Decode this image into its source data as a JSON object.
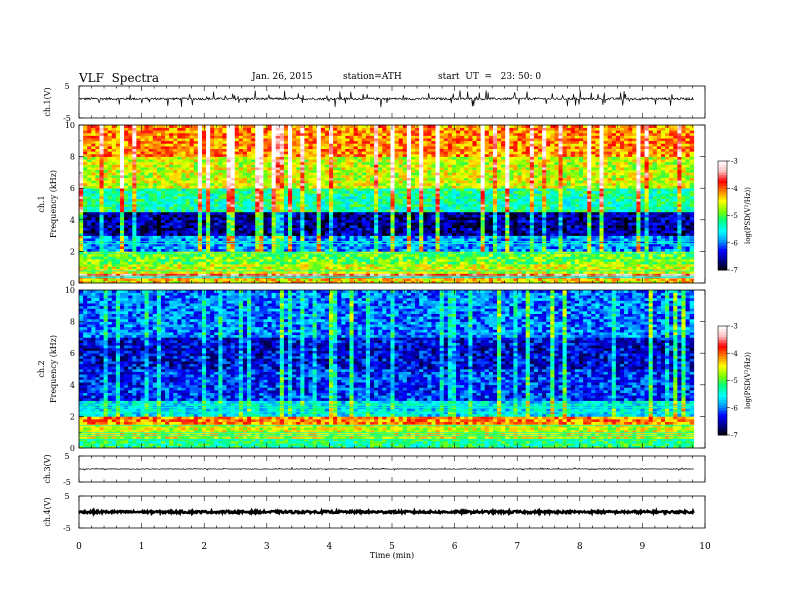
{
  "header": {
    "title": "VLF  Spectra",
    "date": "Jan. 26, 2015",
    "station": "station=ATH",
    "start": "start  UT  =   23: 50: 0"
  },
  "chart_data": [
    {
      "type": "line",
      "panel": "ch1-waveform",
      "ylabel": "ch.1(V)",
      "ylim": [
        -5,
        5
      ],
      "yticks": [
        "5",
        "-5"
      ],
      "x_range_min": [
        0,
        9.82
      ],
      "baseline_v": 1.0,
      "noise_v": 0.35,
      "spike_v": 1.6
    },
    {
      "type": "heatmap",
      "panel": "ch1-spectrogram",
      "ylabel": [
        "ch.1",
        "Frequency  (kHz)"
      ],
      "ylim": [
        0,
        10
      ],
      "yticks": [
        "0",
        "2",
        "4",
        "6",
        "8",
        "10"
      ],
      "x_range_min": [
        0,
        9.82
      ],
      "colorbar": {
        "label": "log(PSD(V²/Hz))",
        "range": [
          -7,
          -3
        ],
        "ticks": [
          "-3",
          "-4",
          "-5",
          "-6",
          "-7"
        ]
      },
      "bands": [
        {
          "f": [
            0,
            0.3
          ],
          "log_psd": -4.4
        },
        {
          "f": [
            0.3,
            0.6
          ],
          "log_psd": -3.6
        },
        {
          "f": [
            0.6,
            1.2
          ],
          "log_psd": -4.6
        },
        {
          "f": [
            1.2,
            2.0
          ],
          "log_psd": -4.9
        },
        {
          "f": [
            2.0,
            3.0
          ],
          "log_psd": -5.9
        },
        {
          "f": [
            3.0,
            4.5
          ],
          "log_psd": -6.6
        },
        {
          "f": [
            4.5,
            6.0
          ],
          "log_psd": -5.3
        },
        {
          "f": [
            6.0,
            8.0
          ],
          "log_psd": -4.6
        },
        {
          "f": [
            8.0,
            10.0
          ],
          "log_psd": -4.1
        }
      ]
    },
    {
      "type": "heatmap",
      "panel": "ch2-spectrogram",
      "ylabel": [
        "ch.2",
        "Frequency  (kHz)"
      ],
      "ylim": [
        0,
        10
      ],
      "yticks": [
        "0",
        "2",
        "4",
        "6",
        "8",
        "10"
      ],
      "x_range_min": [
        0,
        9.82
      ],
      "colorbar": {
        "label": "log(PSD(V²/Hz))",
        "range": [
          -7,
          -3
        ],
        "ticks": [
          "-3",
          "-4",
          "-5",
          "-6",
          "-7"
        ]
      },
      "bands": [
        {
          "f": [
            0,
            0.6
          ],
          "log_psd": -5.2
        },
        {
          "f": [
            0.6,
            1.5
          ],
          "log_psd": -4.6
        },
        {
          "f": [
            1.5,
            2.0
          ],
          "log_psd": -4.1
        },
        {
          "f": [
            2.0,
            3.0
          ],
          "log_psd": -5.6
        },
        {
          "f": [
            3.0,
            5.0
          ],
          "log_psd": -6.2
        },
        {
          "f": [
            5.0,
            7.0
          ],
          "log_psd": -6.4
        },
        {
          "f": [
            7.0,
            10.0
          ],
          "log_psd": -6.0
        }
      ]
    },
    {
      "type": "line",
      "panel": "ch3-waveform",
      "ylabel": "ch.3(V)",
      "ylim": [
        -5,
        5
      ],
      "yticks": [
        "5",
        "-5"
      ],
      "x_range_min": [
        0,
        9.82
      ],
      "baseline_v": 0.0,
      "noise_v": 0.12,
      "spike_v": 0.3
    },
    {
      "type": "line",
      "panel": "ch4-waveform",
      "ylabel": "ch.4(V)",
      "ylim": [
        -5,
        5
      ],
      "yticks": [
        "5",
        "-5"
      ],
      "x_range_min": [
        0,
        9.82
      ],
      "baseline_v": 0.0,
      "noise_v": 0.35,
      "spike_v": 0.0
    }
  ],
  "xaxis": {
    "label": "Time  (min)",
    "range": [
      0,
      10
    ],
    "ticks": [
      "0",
      "1",
      "2",
      "3",
      "4",
      "5",
      "6",
      "7",
      "8",
      "9",
      "10"
    ]
  },
  "colors": {
    "colormap": [
      "#000000",
      "#00008b",
      "#0000ff",
      "#00a0ff",
      "#00ffff",
      "#00ff80",
      "#80ff00",
      "#ffff00",
      "#ff8000",
      "#ff0000",
      "#ffc0c0",
      "#ffffff"
    ]
  }
}
